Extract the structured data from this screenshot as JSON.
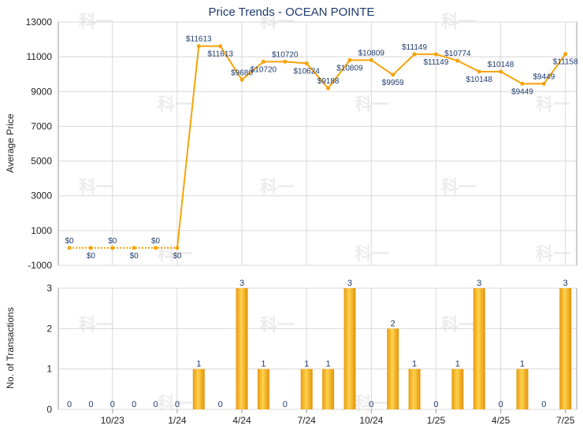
{
  "chart_data": [
    {
      "type": "line",
      "title": "Price Trends - OCEAN POINTE",
      "ylabel": "Average Price",
      "ylim": [
        -1000,
        13000
      ],
      "yticks": [
        -1000,
        1000,
        3000,
        5000,
        7000,
        9000,
        11000,
        13000
      ],
      "x_month_index": [
        0,
        1,
        2,
        3,
        4,
        5,
        6,
        7,
        8,
        9,
        10,
        11,
        12,
        13,
        14,
        15,
        16,
        17,
        18,
        19,
        20,
        21,
        22,
        23
      ],
      "values": [
        0,
        0,
        0,
        0,
        0,
        0,
        11613,
        11613,
        9680,
        10720,
        10720,
        10624,
        9188,
        10809,
        10809,
        9959,
        11149,
        11149,
        10774,
        10148,
        10148,
        9449,
        9449,
        11158
      ],
      "labels": [
        "$0",
        "$0",
        "$0",
        "$0",
        "$0",
        "$0",
        "$11613",
        "$11613",
        "$9680",
        "$10720",
        "$10720",
        "$10624",
        "$9188",
        "$10809",
        "$10809",
        "$9959",
        "$11149",
        "$11149",
        "$10774",
        "$10148",
        "$10148",
        "$9449",
        "$9449",
        "$11158"
      ],
      "dashed_until_index": 5,
      "color": "#f5a30a",
      "grid": true
    },
    {
      "type": "bar",
      "ylabel": "No. of Transactions",
      "ylim": [
        0,
        3
      ],
      "yticks": [
        0,
        1,
        2,
        3
      ],
      "values": [
        0,
        0,
        0,
        0,
        0,
        0,
        1,
        0,
        3,
        1,
        0,
        1,
        1,
        3,
        0,
        2,
        1,
        0,
        1,
        3,
        0,
        1,
        0,
        3
      ],
      "labels": [
        "0",
        "0",
        "0",
        "0",
        "0",
        "0",
        "1",
        "0",
        "3",
        "1",
        "0",
        "1",
        "1",
        "3",
        "0",
        "2",
        "1",
        "0",
        "1",
        "3",
        "0",
        "1",
        "0",
        "3"
      ],
      "x_tick_labels": [
        "10/23",
        "1/24",
        "4/24",
        "7/24",
        "10/24",
        "1/25",
        "4/25",
        "7/25"
      ],
      "x_tick_month_index": [
        2,
        5,
        8,
        11,
        14,
        17,
        20,
        23
      ],
      "color": "#f5a30a",
      "grid": true
    }
  ],
  "watermark": "科一"
}
